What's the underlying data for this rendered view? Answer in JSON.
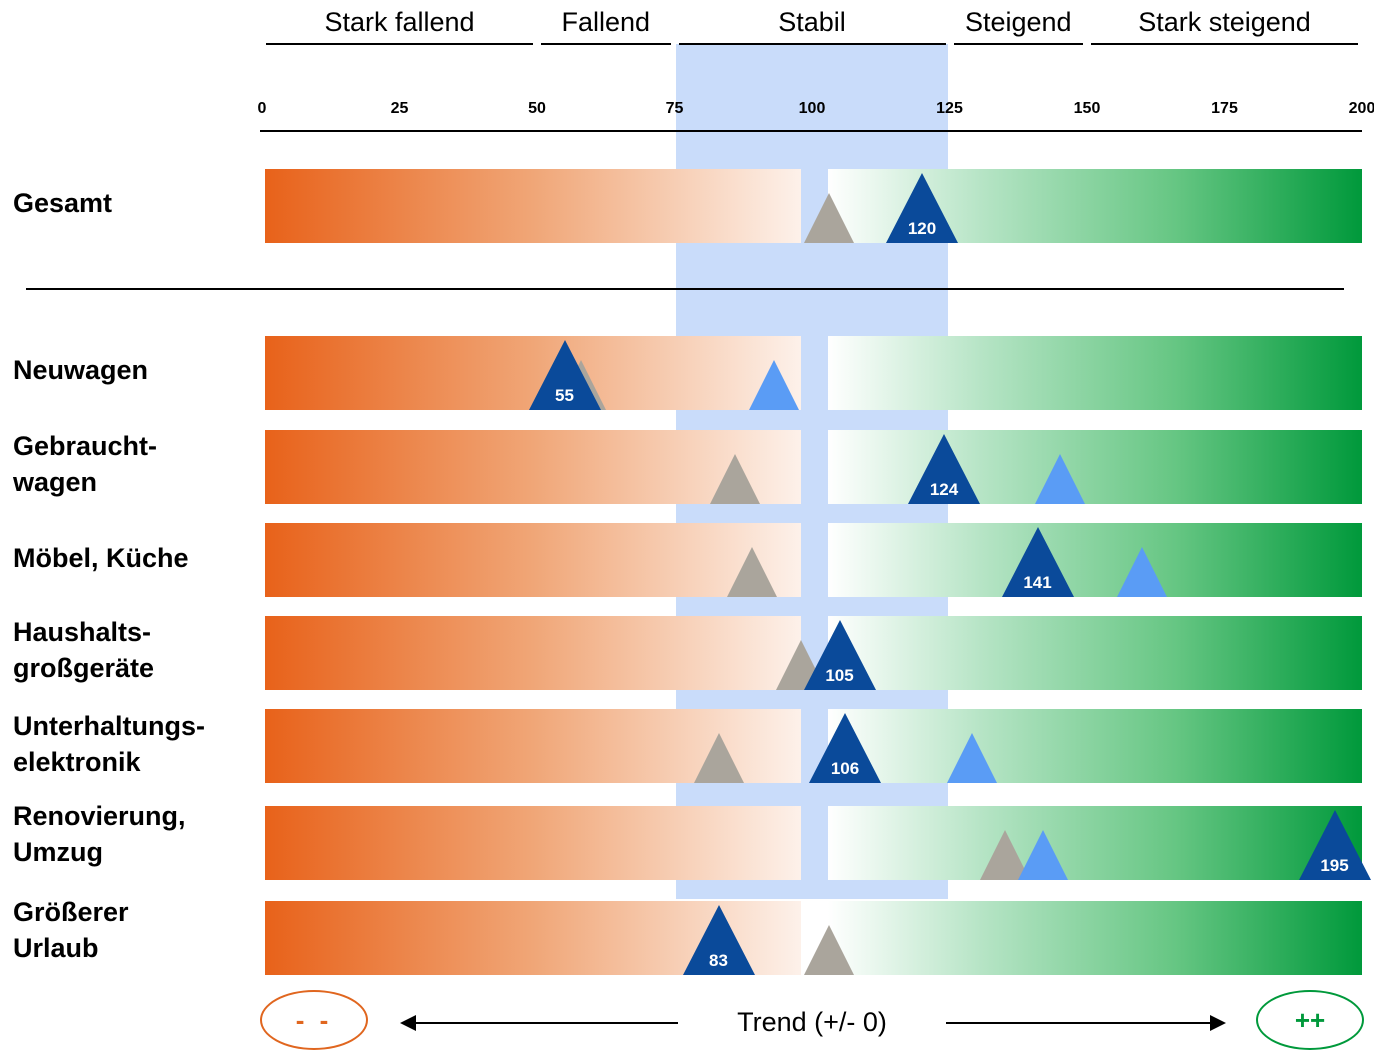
{
  "chart_data": {
    "type": "bar",
    "xlim": [
      0,
      200
    ],
    "ticks": [
      "0",
      "25",
      "50",
      "75",
      "100",
      "125",
      "150",
      "175",
      "200"
    ],
    "zones": [
      {
        "label": "Stark fallend",
        "range": [
          0,
          50
        ]
      },
      {
        "label": "Fallend",
        "range": [
          50,
          75
        ]
      },
      {
        "label": "Stabil",
        "range": [
          75,
          125
        ]
      },
      {
        "label": "Steigend",
        "range": [
          125,
          150
        ]
      },
      {
        "label": "Stark steigend",
        "range": [
          150,
          200
        ]
      }
    ],
    "categories": [
      "Gesamt",
      "Neuwagen",
      "Gebraucht-\nwagen",
      "Möbel, Küche",
      "Haushalts-\ngroßgeräte",
      "Unterhaltungs-\nelektronik",
      "Renovierung,\nUmzug",
      "Größerer\nUrlaub"
    ],
    "series": [
      {
        "values": [
          120,
          55,
          124,
          141,
          105,
          106,
          195,
          83
        ],
        "labels": [
          "120",
          "55",
          "124",
          "141",
          "105",
          "106",
          "195",
          "83"
        ],
        "color": "#0a4a9a"
      },
      {
        "values": [
          119,
          93,
          145,
          160,
          106,
          129,
          142,
          82
        ],
        "color": "#5a9cf5"
      },
      {
        "values": [
          103,
          58,
          86,
          89,
          98,
          83,
          135,
          103
        ],
        "color": "#aaa59c"
      }
    ],
    "bottom_left_label": "- -",
    "bottom_right_label": "++",
    "trend_label": "Trend (+/- 0)"
  }
}
